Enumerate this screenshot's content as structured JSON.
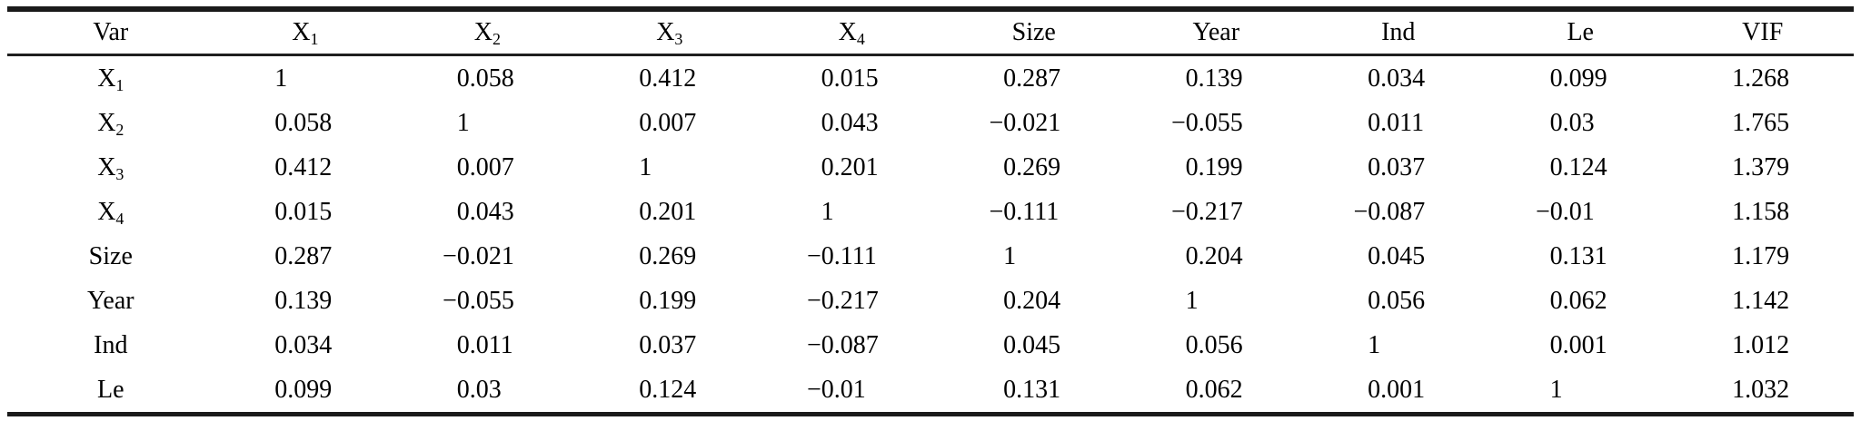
{
  "styles": {
    "background": "#ffffff",
    "text_color": "#000000",
    "rule_color": "#1a1a1a"
  },
  "chart_data": {
    "type": "table",
    "columns": [
      "Var",
      "X_1",
      "X_2",
      "X_3",
      "X_4",
      "Size",
      "Year",
      "Ind",
      "Le",
      "VIF"
    ],
    "rows": [
      {
        "label": "X_1",
        "values": [
          "1",
          "0.058",
          "0.412",
          "0.015",
          "0.287",
          "0.139",
          "0.034",
          "0.099",
          "1.268"
        ]
      },
      {
        "label": "X_2",
        "values": [
          "0.058",
          "1",
          "0.007",
          "0.043",
          "−0.021",
          "−0.055",
          "0.011",
          "0.03",
          "1.765"
        ]
      },
      {
        "label": "X_3",
        "values": [
          "0.412",
          "0.007",
          "1",
          "0.201",
          "0.269",
          "0.199",
          "0.037",
          "0.124",
          "1.379"
        ]
      },
      {
        "label": "X_4",
        "values": [
          "0.015",
          "0.043",
          "0.201",
          "1",
          "−0.111",
          "−0.217",
          "−0.087",
          "−0.01",
          "1.158"
        ]
      },
      {
        "label": "Size",
        "values": [
          "0.287",
          "−0.021",
          "0.269",
          "−0.111",
          "1",
          "0.204",
          "0.045",
          "0.131",
          "1.179"
        ]
      },
      {
        "label": "Year",
        "values": [
          "0.139",
          "−0.055",
          "0.199",
          "−0.217",
          "0.204",
          "1",
          "0.056",
          "0.062",
          "1.142"
        ]
      },
      {
        "label": "Ind",
        "values": [
          "0.034",
          "0.011",
          "0.037",
          "−0.087",
          "0.045",
          "0.056",
          "1",
          "0.001",
          "1.012"
        ]
      },
      {
        "label": "Le",
        "values": [
          "0.099",
          "0.03",
          "0.124",
          "−0.01",
          "0.131",
          "0.062",
          "0.001",
          "1",
          "1.032"
        ]
      }
    ]
  }
}
